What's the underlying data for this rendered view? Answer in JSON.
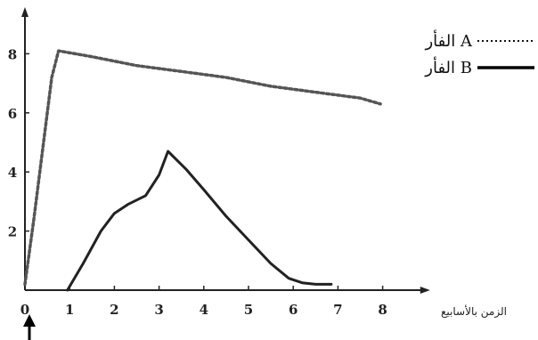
{
  "chart_data": {
    "type": "line",
    "xlabel": "الزمن بالأسابيع",
    "ylabel": "",
    "x_ticks": [
      "0",
      "1",
      "2",
      "3",
      "4",
      "5",
      "6",
      "7",
      "8"
    ],
    "y_ticks": [
      "2",
      "4",
      "6",
      "8"
    ],
    "xlim": [
      0,
      8.9
    ],
    "ylim": [
      0,
      9.2
    ],
    "grid": false,
    "legend_position": "top-right",
    "series": [
      {
        "name": "الفأر A",
        "style": "dotted",
        "x": [
          0.0,
          0.2,
          0.6,
          0.75,
          1.5,
          2.5,
          3.5,
          4.5,
          5.5,
          6.5,
          7.5,
          7.95
        ],
        "y": [
          0.2,
          2.4,
          7.2,
          8.1,
          7.9,
          7.6,
          7.4,
          7.2,
          6.9,
          6.7,
          6.5,
          6.3
        ]
      },
      {
        "name": "الفأر B",
        "style": "solid",
        "x": [
          0.95,
          1.3,
          1.7,
          2.0,
          2.3,
          2.7,
          3.0,
          3.2,
          3.6,
          4.0,
          4.5,
          5.0,
          5.5,
          5.9,
          6.2,
          6.5,
          6.85
        ],
        "y": [
          0.0,
          0.9,
          2.0,
          2.6,
          2.9,
          3.2,
          3.9,
          4.7,
          4.1,
          3.4,
          2.5,
          1.7,
          0.9,
          0.4,
          0.25,
          0.2,
          0.2
        ]
      }
    ]
  },
  "colors": {
    "axis": "#222222",
    "series_a": "#555555",
    "series_b": "#222222"
  },
  "marker": {
    "name": "arrow-up-icon"
  }
}
